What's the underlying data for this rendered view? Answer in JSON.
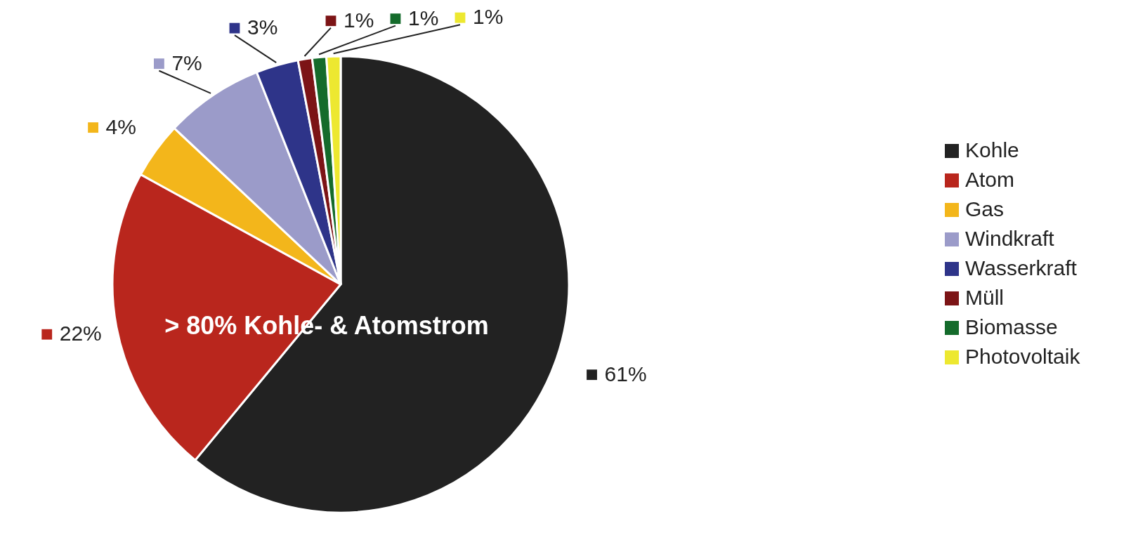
{
  "chart_data": {
    "type": "pie",
    "categories": [
      "Kohle",
      "Atom",
      "Gas",
      "Windkraft",
      "Wasserkraft",
      "Müll",
      "Biomasse",
      "Photovoltaik"
    ],
    "values": [
      61,
      22,
      4,
      7,
      3,
      1,
      1,
      1
    ],
    "colors": [
      "#222222",
      "#b9261d",
      "#f3b61b",
      "#9b9bc9",
      "#2e3489",
      "#7c1416",
      "#146b2b",
      "#ede830"
    ],
    "value_labels": [
      "61%",
      "22%",
      "4%",
      "7%",
      "3%",
      "1%",
      "1%",
      "1%"
    ],
    "legend": "right",
    "annotations": [
      "> 80% Kohle- & Atomstrom"
    ]
  }
}
